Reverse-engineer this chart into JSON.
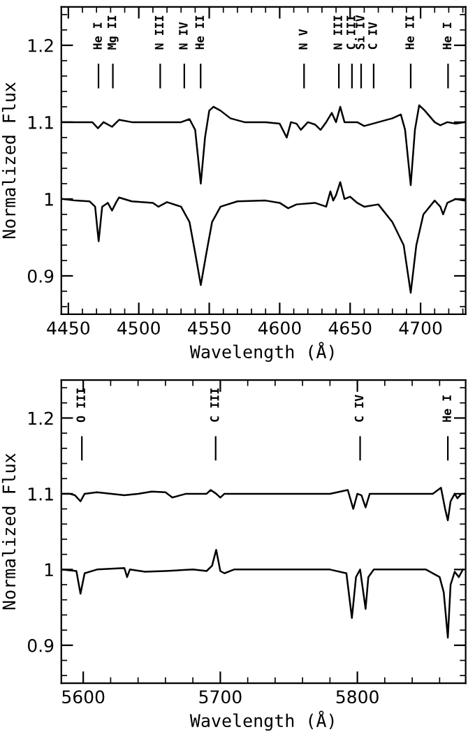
{
  "chart_data": [
    {
      "type": "line",
      "xlabel": "Wavelength (Å)",
      "ylabel": "Normalized Flux",
      "xlim": [
        4445,
        4732
      ],
      "ylim": [
        0.85,
        1.25
      ],
      "xticks": [
        4450,
        4500,
        4550,
        4600,
        4650,
        4700
      ],
      "yticks": [
        0.9,
        1,
        1.1,
        1.2
      ],
      "series": [
        {
          "color": "#000000",
          "x": [
            4446,
            4450,
            4460,
            4467,
            4471,
            4475,
            4481,
            4486,
            4495,
            4510,
            4530,
            4536,
            4540,
            4544,
            4547,
            4550,
            4553,
            4558,
            4565,
            4575,
            4590,
            4600,
            4605,
            4608,
            4612,
            4615,
            4620,
            4625,
            4629,
            4633,
            4637,
            4640,
            4643,
            4646,
            4650,
            4655,
            4660,
            4666,
            4670,
            4680,
            4686,
            4689,
            4693,
            4696,
            4699,
            4703,
            4710,
            4714,
            4719,
            4725,
            4731
          ],
          "values": [
            1.1,
            1.1,
            1.1,
            1.1,
            1.092,
            1.1,
            1.094,
            1.103,
            1.1,
            1.1,
            1.1,
            1.104,
            1.09,
            1.02,
            1.08,
            1.115,
            1.12,
            1.115,
            1.105,
            1.1,
            1.1,
            1.098,
            1.08,
            1.1,
            1.098,
            1.09,
            1.1,
            1.097,
            1.09,
            1.1,
            1.112,
            1.1,
            1.12,
            1.1,
            1.1,
            1.1,
            1.095,
            1.098,
            1.1,
            1.105,
            1.11,
            1.09,
            1.018,
            1.09,
            1.122,
            1.115,
            1.1,
            1.096,
            1.1,
            1.098,
            1.1
          ]
        },
        {
          "color": "#000000",
          "x": [
            4446,
            4455,
            4465,
            4469,
            4471.5,
            4474,
            4478,
            4481,
            4484,
            4486,
            4495,
            4510,
            4514,
            4520,
            4530,
            4536,
            4540,
            4544,
            4548,
            4552,
            4558,
            4570,
            4590,
            4600,
            4606,
            4612,
            4625,
            4633,
            4636,
            4638,
            4640,
            4643,
            4646,
            4650,
            4655,
            4660,
            4670,
            4680,
            4688,
            4693,
            4697,
            4702,
            4710,
            4714,
            4716,
            4719,
            4725,
            4731
          ],
          "values": [
            1.0,
            0.998,
            0.997,
            0.99,
            0.945,
            0.99,
            0.995,
            0.985,
            0.996,
            1.002,
            0.997,
            0.995,
            0.99,
            0.996,
            0.99,
            0.97,
            0.93,
            0.888,
            0.93,
            0.97,
            0.99,
            0.997,
            0.998,
            0.995,
            0.988,
            0.993,
            0.995,
            0.99,
            1.01,
            0.998,
            1.005,
            1.022,
            1.0,
            1.003,
            0.995,
            0.99,
            0.993,
            0.97,
            0.94,
            0.878,
            0.94,
            0.98,
            0.998,
            0.99,
            0.98,
            0.995,
            1.0,
            0.998
          ]
        }
      ],
      "ref_lines": [
        {
          "axis": "x",
          "value": 4471.4,
          "label": "He I"
        },
        {
          "axis": "x",
          "value": 4481.6,
          "label": "Mg II"
        },
        {
          "axis": "x",
          "value": 4515.2,
          "label": "N III"
        },
        {
          "axis": "x",
          "value": 4532.3,
          "label": "N IV"
        },
        {
          "axis": "x",
          "value": 4543.9,
          "label": "He II"
        },
        {
          "axis": "x",
          "value": 4617.3,
          "label": "N V"
        },
        {
          "axis": "x",
          "value": 4642,
          "label": "N III"
        },
        {
          "axis": "x",
          "value": 4651.3,
          "label": "C III"
        },
        {
          "axis": "x",
          "value": 4657.8,
          "label": "Si IV"
        },
        {
          "axis": "x",
          "value": 4666.7,
          "label": "C IV"
        },
        {
          "axis": "x",
          "value": 4693,
          "label": "He II"
        },
        {
          "axis": "x",
          "value": 4719.5,
          "label": "He I"
        }
      ]
    },
    {
      "type": "line",
      "xlabel": "Wavelength (Å)",
      "ylabel": "Normalized Flux",
      "xlim": [
        5584,
        5879
      ],
      "ylim": [
        0.85,
        1.25
      ],
      "xticks": [
        5600,
        5700,
        5800
      ],
      "yticks": [
        0.9,
        1,
        1.1,
        1.2
      ],
      "series": [
        {
          "color": "#000000",
          "x": [
            5584,
            5590,
            5594,
            5598,
            5601,
            5610,
            5630,
            5640,
            5650,
            5660,
            5665,
            5675,
            5690,
            5693,
            5697,
            5700,
            5703,
            5720,
            5780,
            5793,
            5797,
            5800,
            5803,
            5806,
            5809,
            5830,
            5855,
            5861,
            5864,
            5866,
            5868,
            5871,
            5873,
            5876,
            5879
          ],
          "values": [
            1.1,
            1.1,
            1.098,
            1.09,
            1.1,
            1.102,
            1.098,
            1.1,
            1.103,
            1.102,
            1.095,
            1.1,
            1.1,
            1.105,
            1.1,
            1.095,
            1.1,
            1.1,
            1.1,
            1.105,
            1.08,
            1.1,
            1.098,
            1.082,
            1.1,
            1.1,
            1.1,
            1.108,
            1.08,
            1.065,
            1.09,
            1.1,
            1.094,
            1.1,
            1.1
          ]
        },
        {
          "color": "#000000",
          "x": [
            5584,
            5595,
            5598,
            5601,
            5610,
            5630,
            5632,
            5634,
            5645,
            5660,
            5680,
            5690,
            5694,
            5697,
            5700,
            5703,
            5710,
            5780,
            5792,
            5796,
            5799,
            5802,
            5806,
            5808,
            5812,
            5850,
            5860,
            5863,
            5866,
            5868,
            5871,
            5874,
            5877
          ],
          "values": [
            1.0,
            0.998,
            0.968,
            0.995,
            1.0,
            1.002,
            0.99,
            1.0,
            0.997,
            0.998,
            1.0,
            0.998,
            1.005,
            1.026,
            0.998,
            0.995,
            1.0,
            1.0,
            0.995,
            0.936,
            0.99,
            1.0,
            0.948,
            0.99,
            1.0,
            1.0,
            0.99,
            0.97,
            0.91,
            0.98,
            0.997,
            0.99,
            1.0
          ]
        }
      ],
      "ref_lines": [
        {
          "axis": "x",
          "value": 5599,
          "label": "O III"
        },
        {
          "axis": "x",
          "value": 5696.6,
          "label": "C III"
        },
        {
          "axis": "x",
          "value": 5802,
          "label": "C IV"
        },
        {
          "axis": "x",
          "value": 5866,
          "label": "He I"
        }
      ]
    }
  ]
}
